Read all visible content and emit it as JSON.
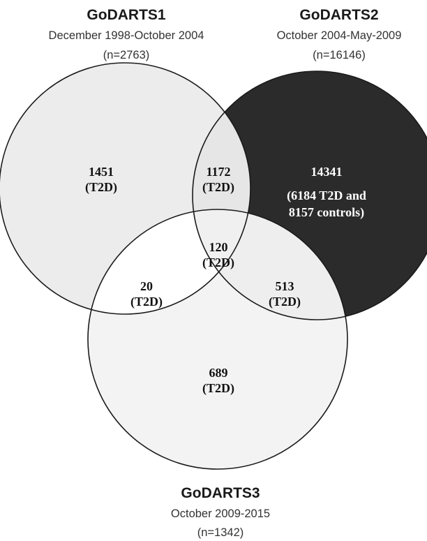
{
  "sets": [
    {
      "title": "GoDARTS1",
      "period": "December 1998-October 2004",
      "n": "(n=2763)"
    },
    {
      "title": "GoDARTS2",
      "period": "October 2004-May-2009",
      "n": "(n=16146)"
    },
    {
      "title": "GoDARTS3",
      "period": "October 2009-2015",
      "n": "(n=1342)"
    }
  ],
  "regions": {
    "only_1": [
      "1451",
      "(T2D)"
    ],
    "one_two": [
      "1172",
      "(T2D)"
    ],
    "only_2": [
      "14341",
      "(6184 T2D and",
      "8157 controls)"
    ],
    "all_three": [
      "120",
      "(T2D)"
    ],
    "one_three": [
      "20",
      "(T2D)"
    ],
    "two_three": [
      "513",
      "(T2D)"
    ],
    "only_3": [
      "689",
      "(T2D)"
    ]
  },
  "colors": {
    "set1_fill": "#ececec",
    "set2_fill": "#2b2b2b",
    "set3_fill": "#f3f3f3",
    "overlap_1_2": "#e6e6e6",
    "overlap_1_3": "#ffffff",
    "overlap_2_3": "#eeeeee",
    "overlap_all": "#f0f0f0",
    "outline": "#1a1a1a"
  }
}
